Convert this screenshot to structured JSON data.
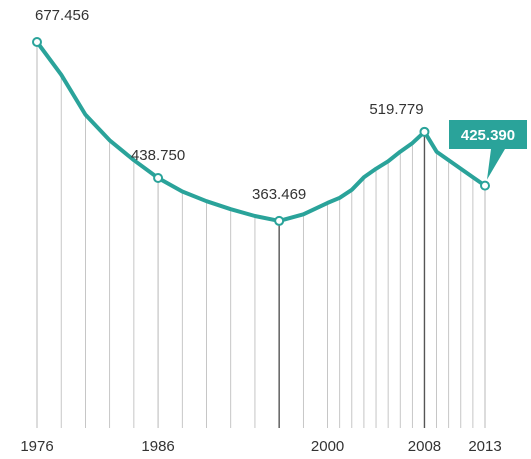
{
  "chart_data": {
    "type": "line",
    "title": "",
    "xlabel": "",
    "ylabel": "",
    "x": [
      1976,
      1978,
      1980,
      1982,
      1984,
      1986,
      1988,
      1990,
      1992,
      1994,
      1996,
      1998,
      2000,
      2001,
      2002,
      2003,
      2004,
      2005,
      2006,
      2007,
      2008,
      2009,
      2010,
      2011,
      2012,
      2013
    ],
    "series": [
      {
        "name": "",
        "values": [
          677456,
          620000,
          550000,
          505000,
          470000,
          438750,
          415000,
          398000,
          384000,
          372000,
          363469,
          375000,
          395000,
          404000,
          418000,
          440000,
          455000,
          468000,
          485000,
          500000,
          519779,
          485000,
          470000,
          455000,
          440000,
          425390
        ]
      }
    ],
    "xticks": [
      1976,
      1986,
      2000,
      2008,
      2013
    ],
    "xtick_labels": [
      "1976",
      "1986",
      "2000",
      "2008",
      "2013"
    ],
    "annotations": [
      {
        "x": 1976,
        "label": "677.456"
      },
      {
        "x": 1986,
        "label": "438.750"
      },
      {
        "x": 1996,
        "label": "363.469"
      },
      {
        "x": 2008,
        "label": "519.779"
      },
      {
        "x": 2013,
        "label": "425.390",
        "highlight": true
      }
    ],
    "xlim": [
      1976,
      2013
    ],
    "ylim": [
      0,
      677456
    ],
    "grid": false,
    "colors": {
      "line": "#2aa39a",
      "callout": "#2aa39a",
      "gridline": "#b8b8b8",
      "gridline_strong": "#555555",
      "text": "#333333"
    }
  }
}
